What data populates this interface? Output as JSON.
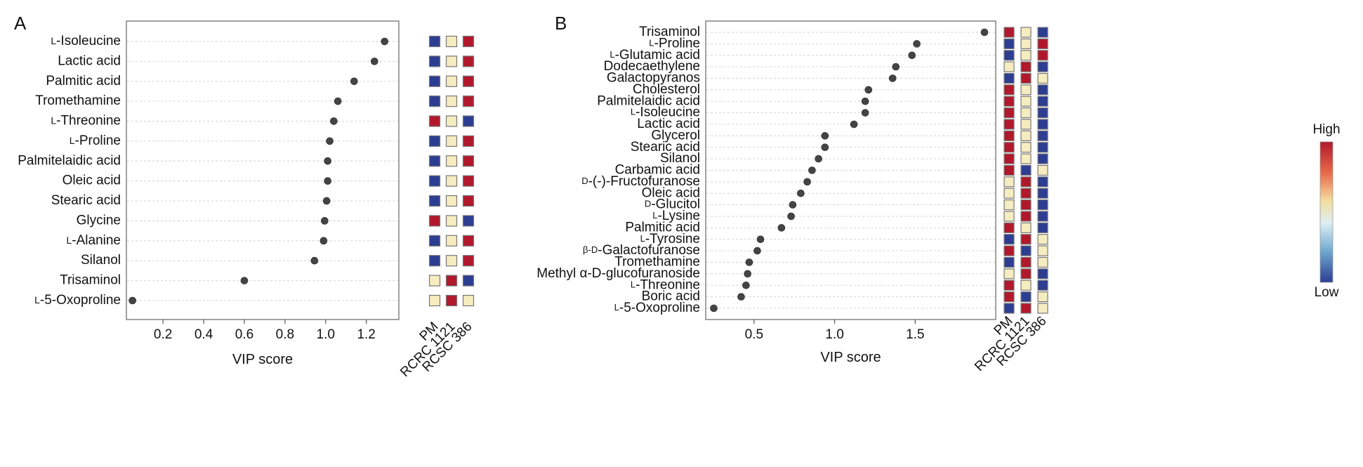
{
  "colors": {
    "high": "#b2182b",
    "mid": "#f5ecc0",
    "low": "#2c3d92",
    "point": "#444444"
  },
  "legend": {
    "high": "High",
    "low": "Low"
  },
  "chart_data": [
    {
      "panel": "A",
      "type": "scatter",
      "xlabel": "VIP score",
      "xlim": [
        0.02,
        1.36
      ],
      "xticks": [
        "0.2",
        "0.4",
        "0.6",
        "0.8",
        "1.0",
        "1.2"
      ],
      "grid": true,
      "categories": [
        "L-Isoleucine",
        "Lactic acid",
        "Palmitic acid",
        "Tromethamine",
        "L-Threonine",
        "L-Proline",
        "Palmitelaidic acid",
        "Oleic acid",
        "Stearic acid",
        "Glycine",
        "L-Alanine",
        "Silanol",
        "Trisaminol",
        "L-5-Oxoproline"
      ],
      "label_prefixes": [
        "L",
        "",
        "",
        "",
        "L",
        "L",
        "",
        "",
        "",
        "",
        "L",
        "",
        "",
        "L"
      ],
      "label_names": [
        "-Isoleucine",
        "Lactic acid",
        "Palmitic acid",
        "Tromethamine",
        "-Threonine",
        "-Proline",
        "Palmitelaidic acid",
        "Oleic acid",
        "Stearic acid",
        "Glycine",
        "-Alanine",
        "Silanol",
        "Trisaminol",
        "-5-Oxoproline"
      ],
      "values": [
        1.29,
        1.24,
        1.14,
        1.06,
        1.04,
        1.02,
        1.01,
        1.01,
        1.005,
        0.995,
        0.99,
        0.945,
        0.6,
        0.05
      ],
      "groups": [
        "PM",
        "RCRC 1121",
        "RCSC 386"
      ],
      "heatmap": [
        [
          "low",
          "mid",
          "high"
        ],
        [
          "low",
          "mid",
          "high"
        ],
        [
          "low",
          "mid",
          "high"
        ],
        [
          "low",
          "mid",
          "high"
        ],
        [
          "high",
          "mid",
          "low"
        ],
        [
          "low",
          "mid",
          "high"
        ],
        [
          "low",
          "mid",
          "high"
        ],
        [
          "low",
          "mid",
          "high"
        ],
        [
          "low",
          "mid",
          "high"
        ],
        [
          "high",
          "mid",
          "low"
        ],
        [
          "low",
          "mid",
          "high"
        ],
        [
          "low",
          "mid",
          "high"
        ],
        [
          "mid",
          "high",
          "low"
        ],
        [
          "mid",
          "high",
          "mid"
        ]
      ]
    },
    {
      "panel": "B",
      "type": "scatter",
      "xlabel": "VIP score",
      "xlim": [
        0.2,
        2.0
      ],
      "xticks": [
        "0.5",
        "1.0",
        "1.5"
      ],
      "grid": true,
      "categories": [
        "Trisaminol",
        "L-Proline",
        "L-Glutamic acid",
        "Dodecaethylene",
        "Galactopyranos",
        "Cholesterol",
        "Palmitelaidic acid",
        "L-Isoleucine",
        "Lactic acid",
        "Glycerol",
        "Stearic acid",
        "Silanol",
        "Carbamic acid",
        "D-(-)-Fructofuranose",
        "Oleic acid",
        "D-Glucitol",
        "L-Lysine",
        "Palmitic acid",
        "L-Tyrosine",
        "β-D-Galactofuranose",
        "Tromethamine",
        "Methyl α-D-glucofuranoside",
        "L-Threonine",
        "Boric acid",
        "L-5-Oxoproline"
      ],
      "label_prefixes": [
        "",
        "L",
        "L",
        "",
        "",
        "",
        "",
        "L",
        "",
        "",
        "",
        "",
        "",
        "D",
        "",
        "D",
        "L",
        "",
        "L",
        "β-D",
        "",
        "",
        "L",
        "",
        "L"
      ],
      "label_names": [
        "Trisaminol",
        "-Proline",
        "-Glutamic acid",
        "Dodecaethylene",
        "Galactopyranos",
        "Cholesterol",
        "Palmitelaidic acid",
        "-Isoleucine",
        "Lactic acid",
        "Glycerol",
        "Stearic acid",
        "Silanol",
        "Carbamic acid",
        "-(-)-Fructofuranose",
        "Oleic acid",
        "-Glucitol",
        "-Lysine",
        "Palmitic acid",
        "-Tyrosine",
        "-Galactofuranose",
        "Tromethamine",
        "Methyl α-D-glucofuranoside",
        "-Threonine",
        "Boric acid",
        "-5-Oxoproline"
      ],
      "values": [
        1.93,
        1.51,
        1.48,
        1.38,
        1.36,
        1.21,
        1.19,
        1.19,
        1.12,
        0.94,
        0.94,
        0.9,
        0.86,
        0.83,
        0.79,
        0.74,
        0.73,
        0.67,
        0.54,
        0.52,
        0.47,
        0.46,
        0.45,
        0.42,
        0.25
      ],
      "groups": [
        "PM",
        "RCRC 1121",
        "RCSC 386"
      ],
      "heatmap": [
        [
          "high",
          "mid",
          "low"
        ],
        [
          "low",
          "mid",
          "high"
        ],
        [
          "low",
          "mid",
          "high"
        ],
        [
          "mid",
          "high",
          "low"
        ],
        [
          "low",
          "high",
          "mid"
        ],
        [
          "high",
          "mid",
          "low"
        ],
        [
          "high",
          "mid",
          "low"
        ],
        [
          "high",
          "mid",
          "low"
        ],
        [
          "high",
          "mid",
          "low"
        ],
        [
          "high",
          "mid",
          "low"
        ],
        [
          "high",
          "mid",
          "low"
        ],
        [
          "high",
          "mid",
          "low"
        ],
        [
          "high",
          "low",
          "mid"
        ],
        [
          "mid",
          "high",
          "low"
        ],
        [
          "mid",
          "high",
          "low"
        ],
        [
          "mid",
          "high",
          "low"
        ],
        [
          "mid",
          "high",
          "low"
        ],
        [
          "high",
          "mid",
          "low"
        ],
        [
          "low",
          "high",
          "mid"
        ],
        [
          "high",
          "low",
          "mid"
        ],
        [
          "low",
          "high",
          "mid"
        ],
        [
          "mid",
          "high",
          "low"
        ],
        [
          "high",
          "mid",
          "low"
        ],
        [
          "high",
          "low",
          "mid"
        ],
        [
          "low",
          "high",
          "mid"
        ]
      ]
    }
  ]
}
